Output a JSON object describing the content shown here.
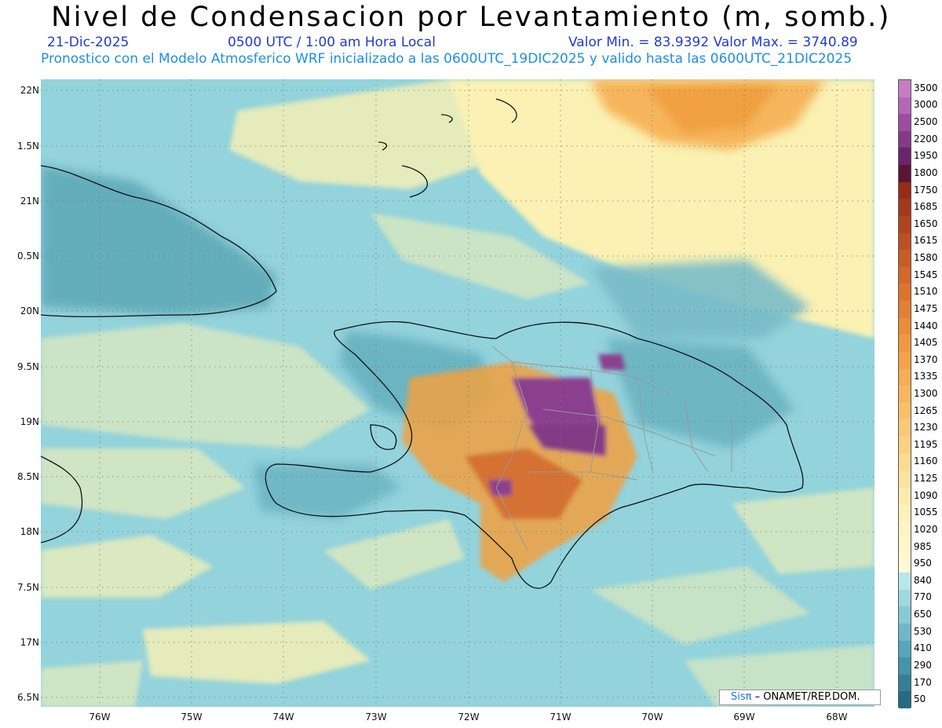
{
  "header": {
    "title": "Nivel de Condensacion por Levantamiento (m, somb.)",
    "date": "21-Dic-2025",
    "time": "0500 UTC / 1:00 am Hora Local",
    "minmax": "Valor Min. = 83.9392  Valor Max. = 3740.89",
    "forecast": "Pronostico con el Modelo Atmosferico WRF inicializado a las 0600UTC_19DIC2025 y valido hasta las  0600UTC_21DIC2025"
  },
  "axes": {
    "lat_labels": [
      "22N",
      "1.5N",
      "21N",
      "0.5N",
      "20N",
      "9.5N",
      "19N",
      "8.5N",
      "18N",
      "7.5N",
      "17N",
      "6.5N"
    ],
    "lon_labels": [
      "76W",
      "75W",
      "74W",
      "73W",
      "72W",
      "71W",
      "70W",
      "69W",
      "68W"
    ]
  },
  "colorbar": {
    "labels": [
      "3500",
      "3000",
      "2500",
      "2200",
      "1950",
      "1800",
      "1750",
      "1685",
      "1650",
      "1615",
      "1580",
      "1545",
      "1510",
      "1475",
      "1440",
      "1405",
      "1370",
      "1335",
      "1300",
      "1265",
      "1230",
      "1195",
      "1160",
      "1125",
      "1090",
      "1055",
      "1020",
      "985",
      "950",
      "840",
      "770",
      "650",
      "530",
      "410",
      "290",
      "170",
      "50"
    ],
    "colors": [
      "#c77dc4",
      "#b567b6",
      "#9e4c9f",
      "#843a86",
      "#6b2469",
      "#5a1437",
      "#952c17",
      "#a3391b",
      "#b0441f",
      "#bd5023",
      "#c85c27",
      "#d2682a",
      "#db742e",
      "#e38033",
      "#ea8c38",
      "#ef9840",
      "#f3a349",
      "#f6ad53",
      "#f8b75e",
      "#f9c06a",
      "#fac977",
      "#fbd284",
      "#fcdb92",
      "#fde39f",
      "#feeaad",
      "#fef0b9",
      "#fff4c3",
      "#fff7cb",
      "#fff9d3",
      "#b9e6ea",
      "#9fd9e0",
      "#86cad6",
      "#6eb8c8",
      "#57a6b9",
      "#4393a9",
      "#347f98",
      "#276a85"
    ]
  },
  "credit": {
    "logo": "Sisπ",
    "text": " – ONAMET/REP.DOM."
  },
  "palette": {
    "sea": "#93d3dc",
    "land_low": "#5aa9b8",
    "yellow": "#fff3b0",
    "orange": "#f0a040",
    "purple": "#8a3f8f"
  }
}
